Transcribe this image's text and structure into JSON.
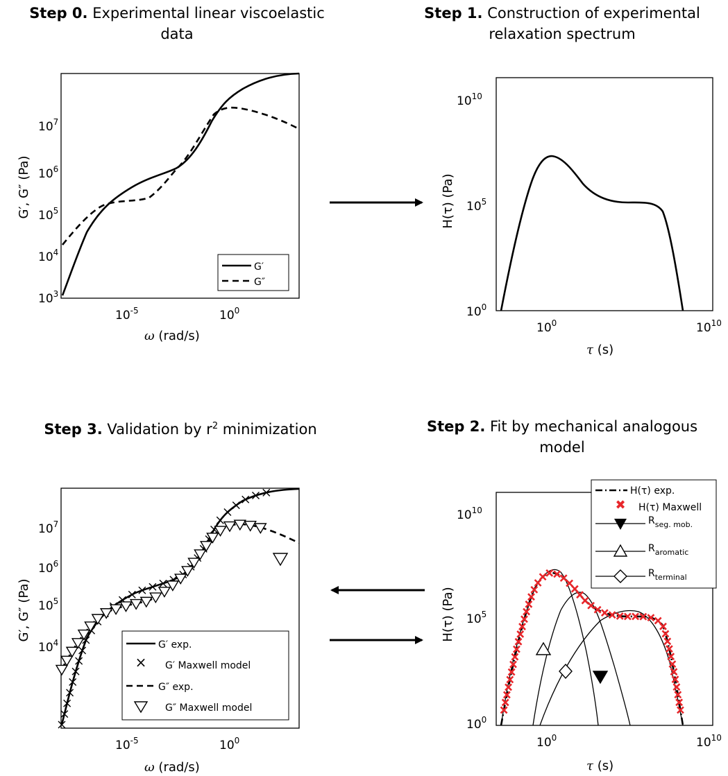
{
  "titles": {
    "p0": {
      "step": "Step 0.",
      "text1": "Experimental linear viscoelastic",
      "text2": "data"
    },
    "p1": {
      "step": "Step 1.",
      "text1": "Construction of experimental",
      "text2": "relaxation spectrum"
    },
    "p3": {
      "step": "Step 3.",
      "text1": "Validation by r",
      "sup": "2",
      "text2": " minimization"
    },
    "p2": {
      "step": "Step 2.",
      "text1": "Fit by mechanical analogous",
      "text2": "model"
    }
  },
  "axes": {
    "omega_label": "ω",
    "omega_unit": "(rad/s)",
    "tau_label": "τ",
    "tau_unit": "(s)",
    "G_label": "G′, G″ (Pa)",
    "H_label": "H(τ) (Pa)",
    "ticks_G": {
      "e3": "3",
      "e4": "4",
      "e5": "5",
      "e6": "6",
      "e7": "7"
    },
    "ticks_omega": {
      "em5": "-5",
      "e0": "0"
    },
    "ticks_H": {
      "e0": "0",
      "e5": "5",
      "e10": "10"
    },
    "ticks_tau": {
      "e0": "0",
      "e10": "10"
    },
    "ten": "10"
  },
  "legend_p0": [
    "G′",
    "G″"
  ],
  "legend_p3": [
    "G′ exp.",
    "G′ Maxwell model",
    "G″ exp.",
    "G″ Maxwell model"
  ],
  "legend_p2": {
    "h_exp": "H(τ) exp.",
    "h_max": "H(τ) Maxwell",
    "R": "R",
    "seg": "seg. mob.",
    "aro": "aromatic",
    "ter": "terminal"
  },
  "colors": {
    "maxwell_markers": "#e8262a",
    "lines": "#000000"
  }
}
